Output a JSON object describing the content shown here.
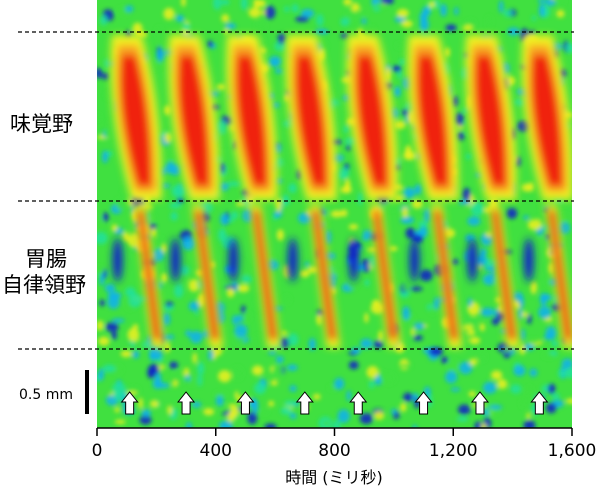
{
  "chart_data": {
    "type": "heatmap",
    "xlabel": "時間 (ミリ秒)",
    "ylabel": "",
    "xlim": [
      0,
      1600
    ],
    "x_ticks": [
      {
        "value": 0,
        "label": "0"
      },
      {
        "value": 400,
        "label": "400"
      },
      {
        "value": 800,
        "label": "800"
      },
      {
        "value": 1200,
        "label": "1,200"
      },
      {
        "value": 1600,
        "label": "1,600"
      }
    ],
    "regions": [
      {
        "label": "味覚野"
      },
      {
        "label": "胃腸\n自律領野"
      }
    ],
    "scale_bar_label": "0.5 mm",
    "stimulus_markers_ms": [
      110,
      300,
      500,
      700,
      880,
      1100,
      1290,
      1490
    ],
    "burst_onsets_ms": [
      60,
      255,
      450,
      650,
      855,
      1060,
      1255,
      1445
    ],
    "colormap": [
      "#1020c8",
      "#10b0f0",
      "#20e0a0",
      "#40e040",
      "#f0f020",
      "#f8a020",
      "#f02010"
    ]
  }
}
